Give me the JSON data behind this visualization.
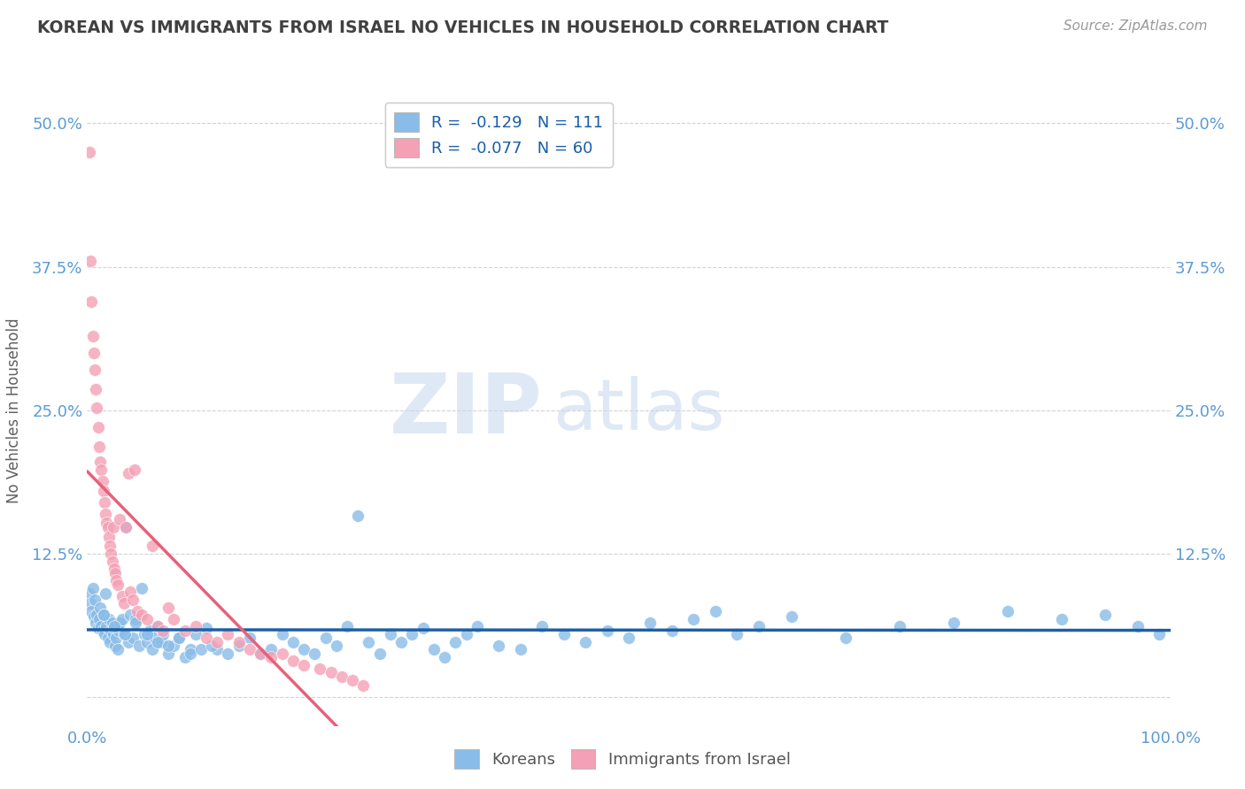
{
  "title": "KOREAN VS IMMIGRANTS FROM ISRAEL NO VEHICLES IN HOUSEHOLD CORRELATION CHART",
  "source_text": "Source: ZipAtlas.com",
  "ylabel": "No Vehicles in Household",
  "xlim": [
    0.0,
    1.0
  ],
  "ylim": [
    -0.025,
    0.525
  ],
  "yticks": [
    0.0,
    0.125,
    0.25,
    0.375,
    0.5
  ],
  "ytick_labels": [
    "",
    "12.5%",
    "25.0%",
    "37.5%",
    "50.0%"
  ],
  "xticks": [
    0.0,
    1.0
  ],
  "xtick_labels": [
    "0.0%",
    "100.0%"
  ],
  "koreans_R": -0.129,
  "koreans_N": 111,
  "israel_R": -0.077,
  "israel_N": 60,
  "korean_color": "#89bce8",
  "israel_color": "#f4a0b5",
  "korean_line_color": "#1f5fa6",
  "israel_line_color": "#e8607a",
  "watermark_zip": "ZIP",
  "watermark_atlas": "atlas",
  "legend_label_1": "Koreans",
  "legend_label_2": "Immigrants from Israel",
  "background_color": "#ffffff",
  "grid_color": "#c8c8c8",
  "title_color": "#404040",
  "axis_tick_color": "#5b9bd5",
  "ylabel_color": "#606060",
  "korean_x": [
    0.002,
    0.003,
    0.004,
    0.005,
    0.006,
    0.007,
    0.008,
    0.009,
    0.01,
    0.011,
    0.012,
    0.013,
    0.014,
    0.015,
    0.016,
    0.017,
    0.018,
    0.019,
    0.02,
    0.021,
    0.022,
    0.023,
    0.024,
    0.025,
    0.026,
    0.027,
    0.028,
    0.029,
    0.03,
    0.032,
    0.034,
    0.036,
    0.038,
    0.04,
    0.042,
    0.045,
    0.048,
    0.05,
    0.053,
    0.055,
    0.058,
    0.06,
    0.063,
    0.065,
    0.068,
    0.07,
    0.075,
    0.08,
    0.085,
    0.09,
    0.095,
    0.1,
    0.11,
    0.12,
    0.13,
    0.14,
    0.15,
    0.16,
    0.17,
    0.18,
    0.19,
    0.2,
    0.21,
    0.22,
    0.23,
    0.24,
    0.25,
    0.26,
    0.27,
    0.28,
    0.29,
    0.3,
    0.31,
    0.32,
    0.33,
    0.34,
    0.35,
    0.36,
    0.38,
    0.4,
    0.42,
    0.44,
    0.46,
    0.48,
    0.5,
    0.52,
    0.54,
    0.56,
    0.58,
    0.6,
    0.62,
    0.65,
    0.7,
    0.75,
    0.8,
    0.85,
    0.9,
    0.94,
    0.97,
    0.99,
    0.015,
    0.025,
    0.035,
    0.045,
    0.055,
    0.065,
    0.075,
    0.085,
    0.095,
    0.105,
    0.115
  ],
  "korean_y": [
    0.09,
    0.082,
    0.075,
    0.095,
    0.07,
    0.085,
    0.065,
    0.072,
    0.06,
    0.068,
    0.078,
    0.062,
    0.058,
    0.072,
    0.055,
    0.09,
    0.062,
    0.052,
    0.068,
    0.048,
    0.058,
    0.065,
    0.055,
    0.06,
    0.045,
    0.052,
    0.042,
    0.058,
    0.065,
    0.068,
    0.055,
    0.148,
    0.048,
    0.072,
    0.052,
    0.068,
    0.045,
    0.095,
    0.055,
    0.048,
    0.058,
    0.042,
    0.052,
    0.062,
    0.048,
    0.055,
    0.038,
    0.045,
    0.052,
    0.035,
    0.042,
    0.055,
    0.06,
    0.042,
    0.038,
    0.045,
    0.052,
    0.038,
    0.042,
    0.055,
    0.048,
    0.042,
    0.038,
    0.052,
    0.045,
    0.062,
    0.158,
    0.048,
    0.038,
    0.055,
    0.048,
    0.055,
    0.06,
    0.042,
    0.035,
    0.048,
    0.055,
    0.062,
    0.045,
    0.042,
    0.062,
    0.055,
    0.048,
    0.058,
    0.052,
    0.065,
    0.058,
    0.068,
    0.075,
    0.055,
    0.062,
    0.07,
    0.052,
    0.062,
    0.065,
    0.075,
    0.068,
    0.072,
    0.062,
    0.055,
    0.072,
    0.062,
    0.055,
    0.065,
    0.055,
    0.048,
    0.045,
    0.052,
    0.038,
    0.042,
    0.045
  ],
  "israel_x": [
    0.002,
    0.003,
    0.004,
    0.005,
    0.006,
    0.007,
    0.008,
    0.009,
    0.01,
    0.011,
    0.012,
    0.013,
    0.014,
    0.015,
    0.016,
    0.017,
    0.018,
    0.019,
    0.02,
    0.021,
    0.022,
    0.023,
    0.024,
    0.025,
    0.026,
    0.027,
    0.028,
    0.03,
    0.032,
    0.034,
    0.036,
    0.038,
    0.04,
    0.042,
    0.044,
    0.046,
    0.05,
    0.055,
    0.06,
    0.065,
    0.07,
    0.075,
    0.08,
    0.09,
    0.1,
    0.11,
    0.12,
    0.13,
    0.14,
    0.15,
    0.16,
    0.17,
    0.18,
    0.19,
    0.2,
    0.215,
    0.225,
    0.235,
    0.245,
    0.255
  ],
  "israel_y": [
    0.475,
    0.38,
    0.345,
    0.315,
    0.3,
    0.285,
    0.268,
    0.252,
    0.235,
    0.218,
    0.205,
    0.198,
    0.188,
    0.18,
    0.17,
    0.16,
    0.152,
    0.148,
    0.14,
    0.132,
    0.125,
    0.118,
    0.148,
    0.112,
    0.108,
    0.102,
    0.098,
    0.155,
    0.088,
    0.082,
    0.148,
    0.195,
    0.092,
    0.085,
    0.198,
    0.075,
    0.072,
    0.068,
    0.132,
    0.062,
    0.058,
    0.078,
    0.068,
    0.058,
    0.062,
    0.052,
    0.048,
    0.055,
    0.048,
    0.042,
    0.038,
    0.035,
    0.038,
    0.032,
    0.028,
    0.025,
    0.022,
    0.018,
    0.015,
    0.01
  ]
}
